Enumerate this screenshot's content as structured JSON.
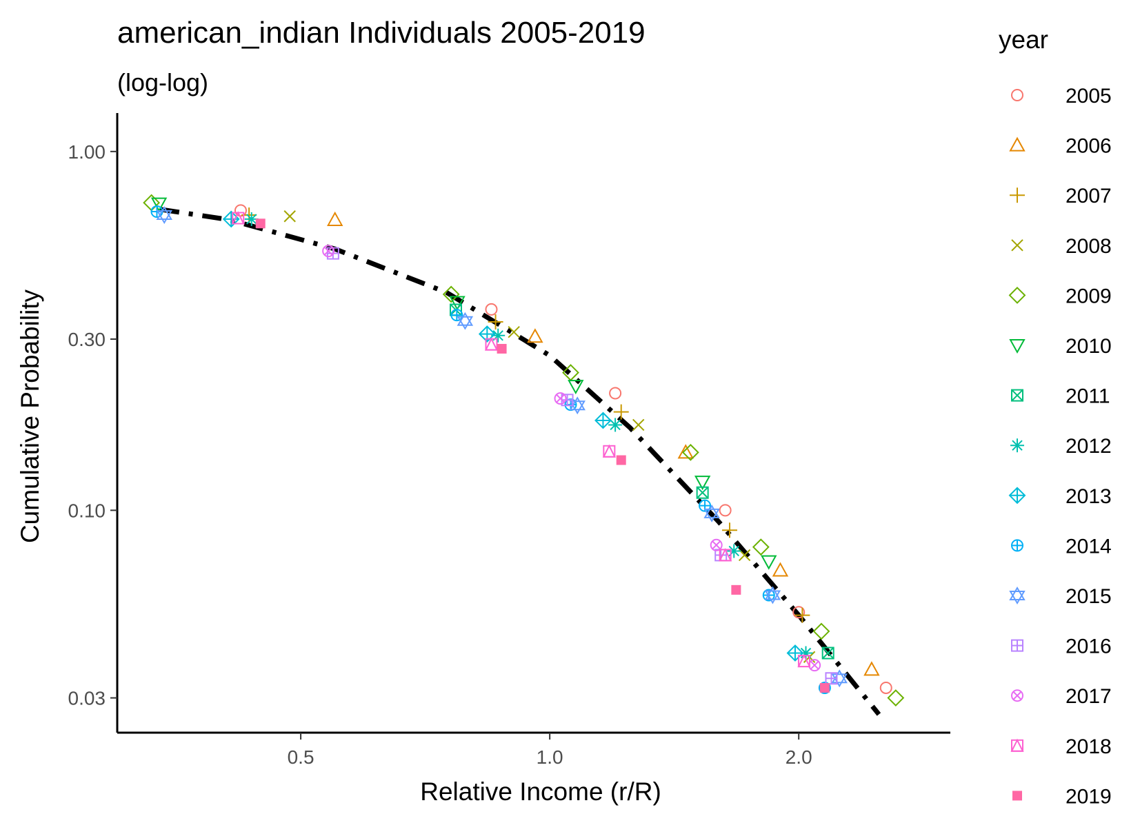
{
  "chart_data": {
    "type": "scatter",
    "title": "american_indian Individuals 2005-2019",
    "subtitle": "(log-log)",
    "xlabel": "Relative Income (r/R)",
    "ylabel": "Cumulative Probability",
    "x_scale": "log",
    "y_scale": "log",
    "xlim": [
      0.3,
      3.05
    ],
    "ylim": [
      0.024,
      1.28
    ],
    "x_ticks": [
      {
        "value": 0.5,
        "label": "0.5"
      },
      {
        "value": 1.0,
        "label": "1.0"
      },
      {
        "value": 2.0,
        "label": "2.0"
      }
    ],
    "y_ticks": [
      {
        "value": 1.0,
        "label": "1.00"
      },
      {
        "value": 0.3,
        "label": "0.30"
      },
      {
        "value": 0.1,
        "label": "0.10"
      },
      {
        "value": 0.03,
        "label": "0.03"
      }
    ],
    "grid": false,
    "legend": {
      "title": "year",
      "placement": "right"
    },
    "fit_line": {
      "style": "dash-dot",
      "color": "#000000",
      "points": [
        [
          0.338,
          0.69
        ],
        [
          0.41,
          0.645
        ],
        [
          0.55,
          0.535
        ],
        [
          0.75,
          0.405
        ],
        [
          1.0,
          0.27
        ],
        [
          1.25,
          0.17
        ],
        [
          1.6,
          0.093
        ],
        [
          2.0,
          0.051
        ],
        [
          2.5,
          0.027
        ]
      ]
    },
    "series": [
      {
        "name": "2005",
        "color": "#F8766D",
        "shape": "circle-open",
        "points": [
          [
            0.423,
            0.685
          ],
          [
            0.85,
            0.363
          ],
          [
            1.2,
            0.212
          ],
          [
            1.63,
            0.1
          ],
          [
            2.0,
            0.052
          ],
          [
            2.55,
            0.032
          ]
        ]
      },
      {
        "name": "2006",
        "color": "#E58700",
        "shape": "triangle-open",
        "points": [
          [
            0.55,
            0.645
          ],
          [
            0.96,
            0.305
          ],
          [
            1.46,
            0.145
          ],
          [
            1.9,
            0.068
          ],
          [
            2.45,
            0.036
          ]
        ]
      },
      {
        "name": "2007",
        "color": "#C99800",
        "shape": "plus",
        "points": [
          [
            0.433,
            0.665
          ],
          [
            0.86,
            0.335
          ],
          [
            1.22,
            0.188
          ],
          [
            1.65,
            0.088
          ],
          [
            2.02,
            0.051
          ]
        ]
      },
      {
        "name": "2008",
        "color": "#A3A500",
        "shape": "cross",
        "points": [
          [
            0.485,
            0.66
          ],
          [
            0.905,
            0.314
          ],
          [
            1.28,
            0.173
          ],
          [
            1.72,
            0.075
          ],
          [
            2.06,
            0.039
          ]
        ]
      },
      {
        "name": "2009",
        "color": "#6BB100",
        "shape": "diamond-open",
        "points": [
          [
            0.33,
            0.72
          ],
          [
            0.76,
            0.4
          ],
          [
            1.06,
            0.242
          ],
          [
            1.48,
            0.145
          ],
          [
            1.8,
            0.079
          ],
          [
            2.13,
            0.046
          ],
          [
            2.62,
            0.03
          ]
        ]
      },
      {
        "name": "2010",
        "color": "#00BA38",
        "shape": "triangle-down-open",
        "points": [
          [
            0.337,
            0.715
          ],
          [
            0.773,
            0.38
          ],
          [
            1.075,
            0.222
          ],
          [
            1.53,
            0.12
          ],
          [
            1.84,
            0.072
          ]
        ]
      },
      {
        "name": "2011",
        "color": "#00BF7D",
        "shape": "square-cross",
        "points": [
          [
            0.77,
            0.362
          ],
          [
            1.53,
            0.112
          ],
          [
            2.17,
            0.04
          ]
        ]
      },
      {
        "name": "2012",
        "color": "#00C0AF",
        "shape": "asterisk",
        "points": [
          [
            0.436,
            0.648
          ],
          [
            0.866,
            0.307
          ],
          [
            1.2,
            0.173
          ],
          [
            1.67,
            0.077
          ],
          [
            2.04,
            0.04
          ]
        ]
      },
      {
        "name": "2013",
        "color": "#00BCD8",
        "shape": "diamond-plus",
        "points": [
          [
            0.412,
            0.648
          ],
          [
            0.84,
            0.31
          ],
          [
            1.16,
            0.178
          ],
          [
            1.98,
            0.04
          ]
        ]
      },
      {
        "name": "2014",
        "color": "#00B0F6",
        "shape": "circle-plus",
        "points": [
          [
            0.335,
            0.68
          ],
          [
            0.772,
            0.35
          ],
          [
            1.06,
            0.197
          ],
          [
            1.54,
            0.103
          ],
          [
            1.84,
            0.058
          ],
          [
            2.15,
            0.032
          ]
        ]
      },
      {
        "name": "2015",
        "color": "#619CFF",
        "shape": "star-of-david",
        "points": [
          [
            0.342,
            0.665
          ],
          [
            0.79,
            0.337
          ],
          [
            1.08,
            0.196
          ],
          [
            1.57,
            0.098
          ],
          [
            1.86,
            0.058
          ],
          [
            2.24,
            0.034
          ]
        ]
      },
      {
        "name": "2016",
        "color": "#B983FF",
        "shape": "square-plus",
        "points": [
          [
            0.547,
            0.52
          ],
          [
            1.05,
            0.203
          ],
          [
            1.61,
            0.075
          ],
          [
            2.19,
            0.034
          ]
        ]
      },
      {
        "name": "2017",
        "color": "#E76BF3",
        "shape": "circle-cross",
        "points": [
          [
            0.54,
            0.528
          ],
          [
            1.03,
            0.205
          ],
          [
            1.59,
            0.08
          ],
          [
            2.09,
            0.037
          ]
        ]
      },
      {
        "name": "2018",
        "color": "#FD61D1",
        "shape": "square-triangle",
        "points": [
          [
            0.42,
            0.652
          ],
          [
            0.85,
            0.29
          ],
          [
            1.18,
            0.146
          ],
          [
            1.63,
            0.075
          ],
          [
            2.03,
            0.038
          ]
        ]
      },
      {
        "name": "2019",
        "color": "#FF67A4",
        "shape": "square-filled",
        "points": [
          [
            0.447,
            0.63
          ],
          [
            0.875,
            0.282
          ],
          [
            1.22,
            0.138
          ],
          [
            1.68,
            0.06
          ],
          [
            2.15,
            0.032
          ]
        ]
      }
    ]
  }
}
